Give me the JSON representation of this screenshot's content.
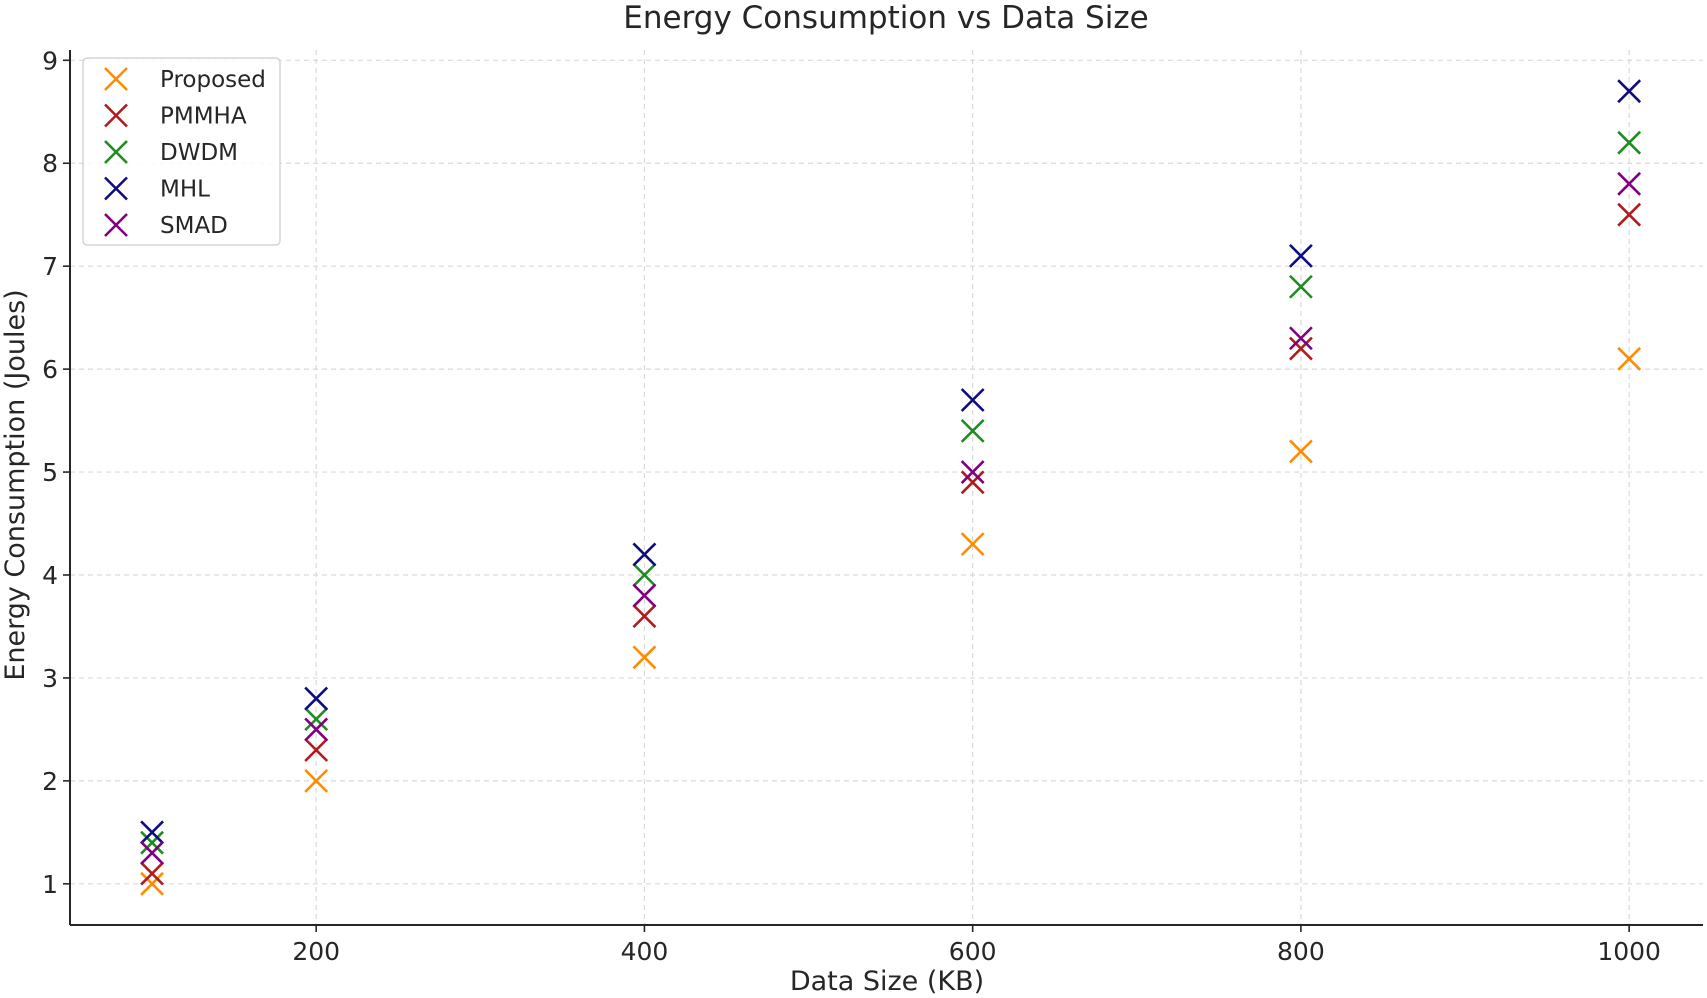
{
  "chart_data": {
    "type": "scatter",
    "title": "Energy Consumption vs Data Size",
    "xlabel": "Data Size (KB)",
    "ylabel": "Energy Consumption (Joules)",
    "x": [
      100,
      200,
      400,
      600,
      800,
      1000
    ],
    "xticks": [
      200,
      400,
      600,
      800,
      1000
    ],
    "yticks": [
      1,
      2,
      3,
      4,
      5,
      6,
      7,
      8,
      9
    ],
    "xlim": [
      50,
      1045
    ],
    "ylim": [
      0.6,
      9.1
    ],
    "grid": true,
    "legend_position": "top-left",
    "marker": "x",
    "series": [
      {
        "name": "Proposed",
        "color": "#ff8c00",
        "values": [
          1.0,
          2.0,
          3.2,
          4.3,
          5.2,
          6.1
        ]
      },
      {
        "name": "PMMHA",
        "color": "#b01c1c",
        "values": [
          1.1,
          2.3,
          3.6,
          4.9,
          6.2,
          7.5
        ]
      },
      {
        "name": "DWDM",
        "color": "#1e8c1e",
        "values": [
          1.4,
          2.6,
          4.0,
          5.4,
          6.8,
          8.2
        ]
      },
      {
        "name": "MHL",
        "color": "#0d0d80",
        "values": [
          1.5,
          2.8,
          4.2,
          5.7,
          7.1,
          8.7
        ]
      },
      {
        "name": "SMAD",
        "color": "#800080",
        "values": [
          1.3,
          2.5,
          3.8,
          5.0,
          6.3,
          7.8
        ]
      }
    ]
  }
}
